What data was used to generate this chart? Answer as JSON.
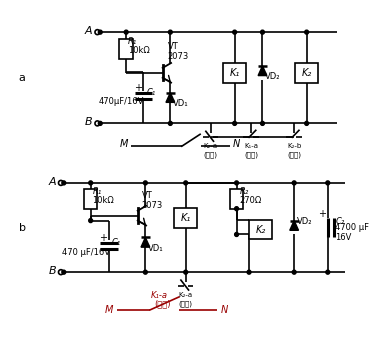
{
  "bg_color": "#ffffff",
  "label_a": "a",
  "label_b": "b",
  "circuit_a": {
    "A_label": "A",
    "B_label": "B",
    "R1_label": "R₁",
    "R1_val": "10kΩ",
    "C1_label": "C₁",
    "C1_val": "470μF/16V",
    "VT_label": "VT\n2073",
    "VD1_label": "VD₁",
    "VD2_label": "VD₂",
    "K1_label": "K₁",
    "K2_label": "K₂",
    "K2a_label": "K₂-a",
    "K2a_sub": "(常闭)",
    "K1a_label": "K₁-a",
    "K1a_sub": "(常开)",
    "K2b_label": "K₂-b",
    "K2b_sub": "(常开)"
  },
  "circuit_b": {
    "A_label": "A",
    "B_label": "B",
    "R1_label": "R₁",
    "R1_val": "10kΩ",
    "R2_label": "R₂",
    "R2_val": "270Ω",
    "C1_label": "C₁",
    "C1_val": "470 μF/16V",
    "C2_label": "C₂",
    "C2_val": "4700 μF\n16V",
    "VT_label": "VT\n2073",
    "VD1_label": "VD₁",
    "VD2_label": "VD₂",
    "K1_label": "K₁",
    "K2_label": "K₂",
    "K2a_label": "K₂-a",
    "K2a_sub": "(常闭)",
    "K1a_label": "K₁-a",
    "K1a_sub": "(常开)"
  },
  "MN_a": {
    "M": "M",
    "N": "N"
  },
  "MN_b": {
    "M": "M",
    "N": "N",
    "K1a": "K₁-a",
    "K1a_sub": "(常开)"
  }
}
